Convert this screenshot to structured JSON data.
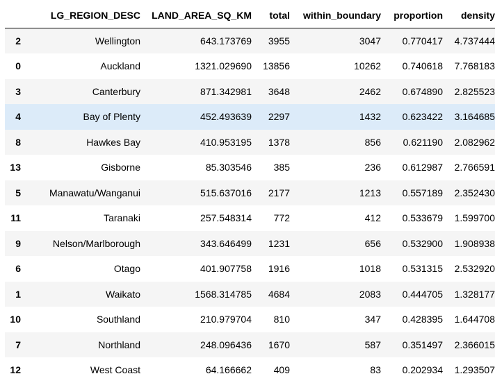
{
  "table": {
    "columns": [
      "",
      "LG_REGION_DESC",
      "LAND_AREA_SQ_KM",
      "total",
      "within_boundary",
      "proportion",
      "density"
    ],
    "rows": [
      {
        "index": "2",
        "region": "Wellington",
        "area": "643.173769",
        "total": "3955",
        "within": "3047",
        "proportion": "0.770417",
        "density": "4.737444"
      },
      {
        "index": "0",
        "region": "Auckland",
        "area": "1321.029690",
        "total": "13856",
        "within": "10262",
        "proportion": "0.740618",
        "density": "7.768183"
      },
      {
        "index": "3",
        "region": "Canterbury",
        "area": "871.342981",
        "total": "3648",
        "within": "2462",
        "proportion": "0.674890",
        "density": "2.825523"
      },
      {
        "index": "4",
        "region": "Bay of Plenty",
        "area": "452.493639",
        "total": "2297",
        "within": "1432",
        "proportion": "0.623422",
        "density": "3.164685"
      },
      {
        "index": "8",
        "region": "Hawkes Bay",
        "area": "410.953195",
        "total": "1378",
        "within": "856",
        "proportion": "0.621190",
        "density": "2.082962"
      },
      {
        "index": "13",
        "region": "Gisborne",
        "area": "85.303546",
        "total": "385",
        "within": "236",
        "proportion": "0.612987",
        "density": "2.766591"
      },
      {
        "index": "5",
        "region": "Manawatu/Wanganui",
        "area": "515.637016",
        "total": "2177",
        "within": "1213",
        "proportion": "0.557189",
        "density": "2.352430"
      },
      {
        "index": "11",
        "region": "Taranaki",
        "area": "257.548314",
        "total": "772",
        "within": "412",
        "proportion": "0.533679",
        "density": "1.599700"
      },
      {
        "index": "9",
        "region": "Nelson/Marlborough",
        "area": "343.646499",
        "total": "1231",
        "within": "656",
        "proportion": "0.532900",
        "density": "1.908938"
      },
      {
        "index": "6",
        "region": "Otago",
        "area": "401.907758",
        "total": "1916",
        "within": "1018",
        "proportion": "0.531315",
        "density": "2.532920"
      },
      {
        "index": "1",
        "region": "Waikato",
        "area": "1568.314785",
        "total": "4684",
        "within": "2083",
        "proportion": "0.444705",
        "density": "1.328177"
      },
      {
        "index": "10",
        "region": "Southland",
        "area": "210.979704",
        "total": "810",
        "within": "347",
        "proportion": "0.428395",
        "density": "1.644708"
      },
      {
        "index": "7",
        "region": "Northland",
        "area": "248.096436",
        "total": "1670",
        "within": "587",
        "proportion": "0.351497",
        "density": "2.366015"
      },
      {
        "index": "12",
        "region": "West Coast",
        "area": "64.166662",
        "total": "409",
        "within": "83",
        "proportion": "0.202934",
        "density": "1.293507"
      }
    ],
    "highlighted_row_index": 3,
    "colors": {
      "header_border": "#000000",
      "row_odd": "#f5f5f5",
      "row_even": "#ffffff",
      "row_hover": "#dcebf9"
    }
  }
}
